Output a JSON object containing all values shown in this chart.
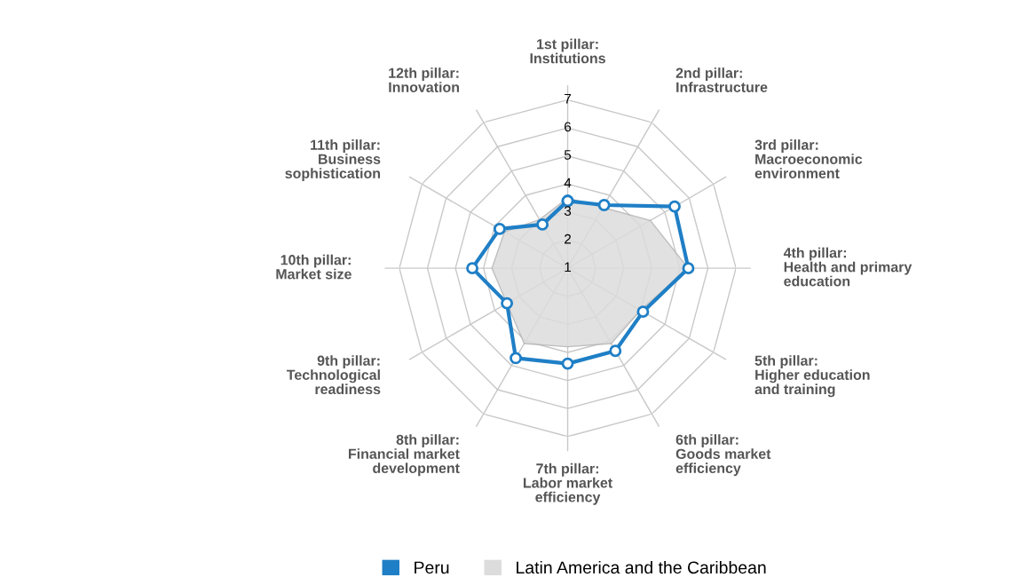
{
  "chart_data": {
    "type": "radar",
    "categories": [
      "1st pillar:\nInstitutions",
      "2nd pillar:\nInfrastructure",
      "3rd pillar:\nMacroeconomic\nenvironment",
      "4th pillar:\nHealth and primary\neducation",
      "5th pillar:\nHigher education\nand training",
      "6th pillar:\nGoods market\nefficiency",
      "7th pillar:\nLabor market\nefficiency",
      "8th pillar:\nFinancial market\ndevelopment",
      "9th pillar:\nTechnological\nreadiness",
      "10th pillar:\nMarket size",
      "11th pillar:\nBusiness\nsophistication",
      "12th pillar:\nInnovation"
    ],
    "ylim": [
      1,
      7
    ],
    "yticks": [
      1,
      2,
      3,
      4,
      5,
      6,
      7
    ],
    "legend": "bottom",
    "grid": true,
    "series": [
      {
        "name": "Latin America and the Caribbean",
        "color": "#dcdcdc",
        "marker": "none",
        "values": [
          3.5,
          3.5,
          4.4,
          5.3,
          4.0,
          4.1,
          3.8,
          4.1,
          3.5,
          3.7,
          3.6,
          3.0
        ]
      },
      {
        "name": "Peru",
        "color": "#1f7fc6",
        "marker": "circle",
        "values": [
          3.4,
          3.6,
          5.4,
          5.3,
          4.1,
          4.4,
          4.4,
          4.7,
          3.5,
          4.4,
          3.8,
          2.8
        ]
      }
    ]
  }
}
